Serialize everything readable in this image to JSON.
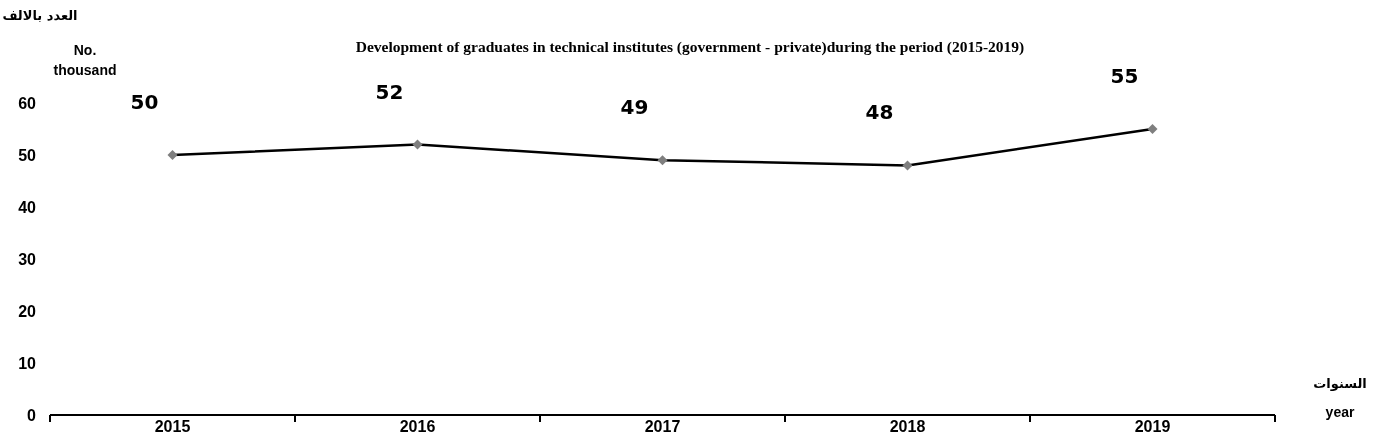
{
  "chart_data": {
    "type": "line",
    "title": "Development of graduates in technical institutes (government - private)during the period (2015-2019)",
    "xlabel": "year",
    "ylabel": "No. thousand",
    "annotations": [
      "العدد بالالف",
      "السنوات"
    ],
    "categories": [
      "2015",
      "2016",
      "2017",
      "2018",
      "2019"
    ],
    "values": [
      50,
      52,
      49,
      48,
      55
    ],
    "color": "#000000",
    "ylim": [
      0,
      60
    ],
    "yticks": [
      0,
      10,
      20,
      30,
      40,
      50,
      60
    ],
    "marker": "diamond",
    "data_labels": true
  }
}
